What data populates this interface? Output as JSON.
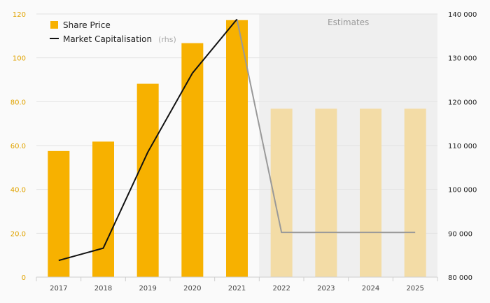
{
  "chart_data": {
    "type": "bar+line",
    "categories": [
      "2017",
      "2018",
      "2019",
      "2020",
      "2021",
      "2022",
      "2023",
      "2024",
      "2025"
    ],
    "estimate_start_index": 5,
    "estimates_label": "Estimates",
    "series": [
      {
        "name": "Share Price",
        "type": "bar",
        "axis": "left",
        "values": [
          57.5,
          61.8,
          88.2,
          106.7,
          117.2,
          76.8,
          76.8,
          76.8,
          76.8
        ],
        "color": "#f7b100",
        "estimate_color": "#f3dca6"
      },
      {
        "name": "Market Capitalisation",
        "legend_suffix": "(rhs)",
        "type": "line",
        "axis": "right",
        "values": [
          83800,
          86600,
          108500,
          126500,
          138800,
          90200,
          90200,
          90200,
          90200
        ],
        "color": "#111111",
        "estimate_color": "#999999"
      }
    ],
    "y_left": {
      "min": 0,
      "max": 120,
      "ticks": [
        0,
        20,
        40,
        60,
        80,
        100,
        120
      ],
      "tick_labels": [
        "0",
        "20.0",
        "40.0",
        "60.0",
        "80.0",
        "100",
        "120"
      ],
      "color": "#e0a300"
    },
    "y_right": {
      "min": 80000,
      "max": 140000,
      "ticks": [
        80000,
        90000,
        100000,
        110000,
        120000,
        130000,
        140000
      ],
      "tick_labels": [
        "80 000",
        "90 000",
        "100 000",
        "110 000",
        "120 000",
        "130 000",
        "140 000"
      ],
      "color": "#222222"
    },
    "grid": true,
    "legend_position": "top-left",
    "estimates_shading_color": "#efefef"
  }
}
